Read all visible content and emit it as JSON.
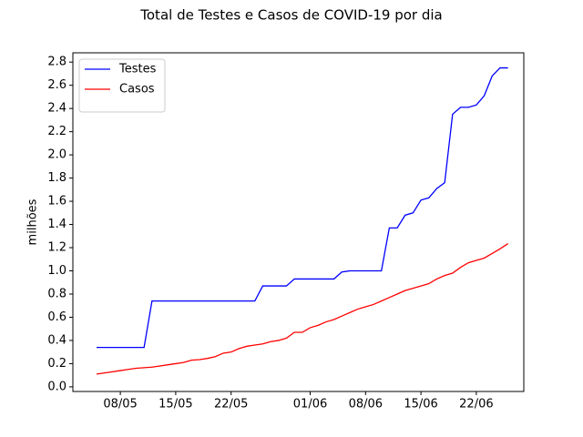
{
  "chart_data": {
    "type": "line",
    "title": "Total de Testes e Casos de COVID-19 por dia",
    "y_label": "milhões",
    "x": [
      "05/05",
      "06/05",
      "07/05",
      "08/05",
      "09/05",
      "10/05",
      "11/05",
      "12/05",
      "13/05",
      "14/05",
      "15/05",
      "16/05",
      "17/05",
      "18/05",
      "19/05",
      "20/05",
      "21/05",
      "22/05",
      "23/05",
      "24/05",
      "25/05",
      "26/05",
      "27/05",
      "28/05",
      "29/05",
      "30/05",
      "31/05",
      "01/06",
      "02/06",
      "03/06",
      "04/06",
      "05/06",
      "06/06",
      "07/06",
      "08/06",
      "09/06",
      "10/06",
      "11/06",
      "12/06",
      "13/06",
      "14/06",
      "15/06",
      "16/06",
      "17/06",
      "18/06",
      "19/06",
      "20/06",
      "21/06",
      "22/06",
      "23/06",
      "24/06",
      "25/06",
      "26/06"
    ],
    "series": [
      {
        "name": "Testes",
        "color": "#0000ff",
        "values": [
          0.34,
          0.34,
          0.34,
          0.34,
          0.34,
          0.34,
          0.34,
          0.74,
          0.74,
          0.74,
          0.74,
          0.74,
          0.74,
          0.74,
          0.74,
          0.74,
          0.74,
          0.74,
          0.74,
          0.74,
          0.74,
          0.87,
          0.87,
          0.87,
          0.87,
          0.93,
          0.93,
          0.93,
          0.93,
          0.93,
          0.93,
          0.99,
          1.0,
          1.0,
          1.0,
          1.0,
          1.0,
          1.37,
          1.37,
          1.48,
          1.5,
          1.61,
          1.63,
          1.71,
          1.76,
          2.35,
          2.41,
          2.41,
          2.43,
          2.51,
          2.68,
          2.75,
          2.75
        ]
      },
      {
        "name": "Casos",
        "color": "#ff0000",
        "values": [
          0.11,
          0.12,
          0.13,
          0.14,
          0.15,
          0.16,
          0.165,
          0.17,
          0.18,
          0.19,
          0.2,
          0.21,
          0.23,
          0.235,
          0.245,
          0.26,
          0.29,
          0.3,
          0.33,
          0.35,
          0.36,
          0.37,
          0.39,
          0.4,
          0.42,
          0.47,
          0.47,
          0.51,
          0.53,
          0.56,
          0.58,
          0.61,
          0.64,
          0.67,
          0.69,
          0.71,
          0.74,
          0.77,
          0.8,
          0.83,
          0.85,
          0.87,
          0.89,
          0.93,
          0.96,
          0.98,
          1.03,
          1.07,
          1.09,
          1.11,
          1.15,
          1.19,
          1.235
        ]
      }
    ],
    "xlim": [
      "02/05",
      "28/06"
    ],
    "xticks": [
      "08/05",
      "15/05",
      "22/05",
      "01/06",
      "08/06",
      "15/06",
      "22/06"
    ],
    "ylim": [
      -0.04,
      2.88
    ],
    "yticks": [
      {
        "value": 0,
        "label": "0.0"
      },
      0.2,
      0.4,
      0.6,
      0.8,
      {
        "value": 1,
        "label": "1.0"
      },
      1.2,
      1.4,
      1.6,
      1.8,
      {
        "value": 2,
        "label": "2.0"
      },
      2.2,
      2.4,
      2.6,
      2.8
    ],
    "legend": "upper left",
    "grid": false
  }
}
